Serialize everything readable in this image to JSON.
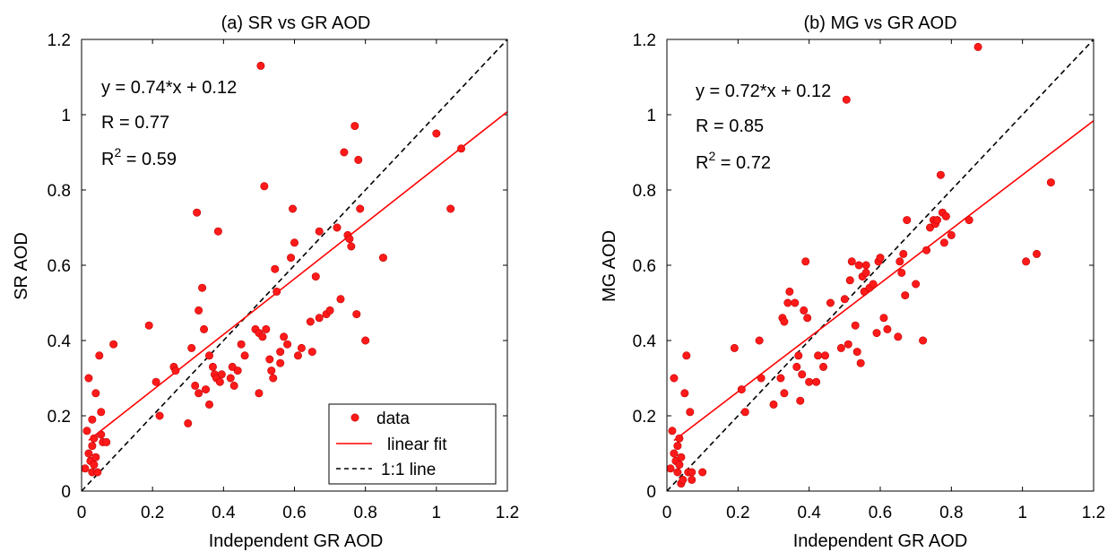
{
  "chart_data": [
    {
      "type": "scatter",
      "title": "(a) SR vs GR AOD",
      "xlabel": "Independent GR AOD",
      "ylabel": "SR AOD",
      "xlim": [
        0,
        1.2
      ],
      "ylim": [
        0,
        1.2
      ],
      "xticks": [
        "0",
        "0.2",
        "0.4",
        "0.6",
        "0.8",
        "1",
        "1.2"
      ],
      "yticks": [
        "0",
        "0.2",
        "0.4",
        "0.6",
        "0.8",
        "1",
        "1.2"
      ],
      "equation": "y = 0.74*x + 0.12",
      "r_text": "R = 0.77",
      "r2_prefix": "R",
      "r2_exp": "2",
      "r2_value": " = 0.59",
      "fit": {
        "slope": 0.74,
        "intercept": 0.12
      },
      "legend": {
        "placement": "bottom-right",
        "data": "data",
        "fit": "linear fit",
        "identity": "1:1 line"
      },
      "points": [
        [
          0.01,
          0.06
        ],
        [
          0.015,
          0.16
        ],
        [
          0.02,
          0.1
        ],
        [
          0.02,
          0.3
        ],
        [
          0.025,
          0.08
        ],
        [
          0.03,
          0.05
        ],
        [
          0.03,
          0.12
        ],
        [
          0.03,
          0.19
        ],
        [
          0.035,
          0.14
        ],
        [
          0.035,
          0.07
        ],
        [
          0.04,
          0.09
        ],
        [
          0.04,
          0.26
        ],
        [
          0.045,
          0.05
        ],
        [
          0.05,
          0.36
        ],
        [
          0.055,
          0.15
        ],
        [
          0.055,
          0.21
        ],
        [
          0.06,
          0.13
        ],
        [
          0.07,
          0.13
        ],
        [
          0.09,
          0.39
        ],
        [
          0.19,
          0.44
        ],
        [
          0.21,
          0.29
        ],
        [
          0.22,
          0.2
        ],
        [
          0.26,
          0.33
        ],
        [
          0.265,
          0.32
        ],
        [
          0.3,
          0.18
        ],
        [
          0.31,
          0.38
        ],
        [
          0.32,
          0.28
        ],
        [
          0.325,
          0.74
        ],
        [
          0.33,
          0.48
        ],
        [
          0.33,
          0.26
        ],
        [
          0.34,
          0.54
        ],
        [
          0.345,
          0.43
        ],
        [
          0.35,
          0.27
        ],
        [
          0.36,
          0.36
        ],
        [
          0.36,
          0.23
        ],
        [
          0.37,
          0.33
        ],
        [
          0.375,
          0.31
        ],
        [
          0.38,
          0.3
        ],
        [
          0.385,
          0.69
        ],
        [
          0.39,
          0.29
        ],
        [
          0.395,
          0.31
        ],
        [
          0.42,
          0.3
        ],
        [
          0.425,
          0.33
        ],
        [
          0.43,
          0.28
        ],
        [
          0.44,
          0.32
        ],
        [
          0.45,
          0.39
        ],
        [
          0.46,
          0.36
        ],
        [
          0.49,
          0.43
        ],
        [
          0.5,
          0.26
        ],
        [
          0.5,
          0.42
        ],
        [
          0.505,
          1.13
        ],
        [
          0.51,
          0.41
        ],
        [
          0.515,
          0.81
        ],
        [
          0.52,
          0.43
        ],
        [
          0.53,
          0.35
        ],
        [
          0.535,
          0.32
        ],
        [
          0.54,
          0.3
        ],
        [
          0.545,
          0.59
        ],
        [
          0.55,
          0.53
        ],
        [
          0.56,
          0.37
        ],
        [
          0.56,
          0.34
        ],
        [
          0.57,
          0.41
        ],
        [
          0.58,
          0.39
        ],
        [
          0.59,
          0.62
        ],
        [
          0.595,
          0.75
        ],
        [
          0.6,
          0.66
        ],
        [
          0.61,
          0.36
        ],
        [
          0.62,
          0.38
        ],
        [
          0.645,
          0.45
        ],
        [
          0.65,
          0.37
        ],
        [
          0.66,
          0.57
        ],
        [
          0.67,
          0.46
        ],
        [
          0.67,
          0.69
        ],
        [
          0.69,
          0.47
        ],
        [
          0.7,
          0.48
        ],
        [
          0.72,
          0.7
        ],
        [
          0.73,
          0.51
        ],
        [
          0.74,
          0.9
        ],
        [
          0.75,
          0.68
        ],
        [
          0.755,
          0.67
        ],
        [
          0.76,
          0.65
        ],
        [
          0.77,
          0.97
        ],
        [
          0.775,
          0.47
        ],
        [
          0.78,
          0.88
        ],
        [
          0.785,
          0.75
        ],
        [
          0.8,
          0.4
        ],
        [
          0.85,
          0.62
        ],
        [
          1.0,
          0.95
        ],
        [
          1.04,
          0.75
        ],
        [
          1.07,
          0.91
        ]
      ]
    },
    {
      "type": "scatter",
      "title": "(b) MG vs GR AOD",
      "xlabel": "Independent GR AOD",
      "ylabel": "MG AOD",
      "xlim": [
        0,
        1.2
      ],
      "ylim": [
        0,
        1.2
      ],
      "xticks": [
        "0",
        "0.2",
        "0.4",
        "0.6",
        "0.8",
        "1",
        "1.2"
      ],
      "yticks": [
        "0",
        "0.2",
        "0.4",
        "0.6",
        "0.8",
        "1",
        "1.2"
      ],
      "equation": "y = 0.72*x + 0.12",
      "r_text": "R = 0.85",
      "r2_prefix": "R",
      "r2_exp": "2",
      "r2_value": " = 0.72",
      "fit": {
        "slope": 0.72,
        "intercept": 0.12
      },
      "points": [
        [
          0.01,
          0.06
        ],
        [
          0.015,
          0.16
        ],
        [
          0.02,
          0.1
        ],
        [
          0.02,
          0.3
        ],
        [
          0.025,
          0.08
        ],
        [
          0.03,
          0.05
        ],
        [
          0.03,
          0.12
        ],
        [
          0.035,
          0.14
        ],
        [
          0.035,
          0.07
        ],
        [
          0.04,
          0.09
        ],
        [
          0.04,
          0.02
        ],
        [
          0.045,
          0.03
        ],
        [
          0.05,
          0.26
        ],
        [
          0.055,
          0.36
        ],
        [
          0.06,
          0.05
        ],
        [
          0.065,
          0.21
        ],
        [
          0.07,
          0.03
        ],
        [
          0.07,
          0.05
        ],
        [
          0.1,
          0.05
        ],
        [
          0.19,
          0.38
        ],
        [
          0.21,
          0.27
        ],
        [
          0.22,
          0.21
        ],
        [
          0.26,
          0.4
        ],
        [
          0.265,
          0.3
        ],
        [
          0.3,
          0.23
        ],
        [
          0.32,
          0.3
        ],
        [
          0.325,
          0.46
        ],
        [
          0.33,
          0.26
        ],
        [
          0.33,
          0.45
        ],
        [
          0.34,
          0.5
        ],
        [
          0.345,
          0.53
        ],
        [
          0.36,
          0.5
        ],
        [
          0.365,
          0.33
        ],
        [
          0.37,
          0.36
        ],
        [
          0.375,
          0.24
        ],
        [
          0.38,
          0.31
        ],
        [
          0.385,
          0.48
        ],
        [
          0.39,
          0.61
        ],
        [
          0.395,
          0.46
        ],
        [
          0.4,
          0.29
        ],
        [
          0.42,
          0.29
        ],
        [
          0.425,
          0.36
        ],
        [
          0.44,
          0.33
        ],
        [
          0.445,
          0.36
        ],
        [
          0.46,
          0.5
        ],
        [
          0.49,
          0.38
        ],
        [
          0.5,
          0.51
        ],
        [
          0.505,
          1.04
        ],
        [
          0.51,
          0.39
        ],
        [
          0.515,
          0.56
        ],
        [
          0.52,
          0.61
        ],
        [
          0.53,
          0.44
        ],
        [
          0.535,
          0.37
        ],
        [
          0.54,
          0.6
        ],
        [
          0.545,
          0.34
        ],
        [
          0.55,
          0.57
        ],
        [
          0.555,
          0.53
        ],
        [
          0.56,
          0.6
        ],
        [
          0.56,
          0.58
        ],
        [
          0.57,
          0.54
        ],
        [
          0.58,
          0.55
        ],
        [
          0.59,
          0.42
        ],
        [
          0.595,
          0.61
        ],
        [
          0.6,
          0.62
        ],
        [
          0.61,
          0.46
        ],
        [
          0.62,
          0.43
        ],
        [
          0.65,
          0.41
        ],
        [
          0.655,
          0.61
        ],
        [
          0.66,
          0.58
        ],
        [
          0.665,
          0.63
        ],
        [
          0.67,
          0.52
        ],
        [
          0.675,
          0.72
        ],
        [
          0.7,
          0.55
        ],
        [
          0.72,
          0.4
        ],
        [
          0.73,
          0.64
        ],
        [
          0.74,
          0.7
        ],
        [
          0.75,
          0.72
        ],
        [
          0.755,
          0.71
        ],
        [
          0.76,
          0.72
        ],
        [
          0.77,
          0.84
        ],
        [
          0.775,
          0.74
        ],
        [
          0.78,
          0.66
        ],
        [
          0.785,
          0.73
        ],
        [
          0.8,
          0.68
        ],
        [
          0.85,
          0.72
        ],
        [
          0.875,
          1.18
        ],
        [
          1.01,
          0.61
        ],
        [
          1.04,
          0.63
        ],
        [
          1.08,
          0.82
        ]
      ]
    }
  ]
}
